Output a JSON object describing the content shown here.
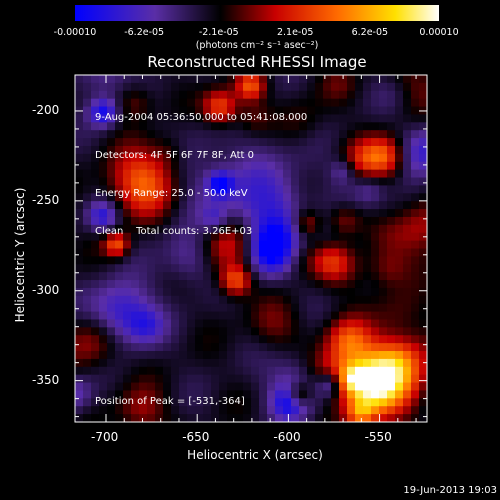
{
  "chart_data": {
    "type": "heatmap",
    "title": "Reconstructed RHESSI Image",
    "xlabel": "Heliocentric X (arcsec)",
    "ylabel": "Heliocentric Y (arcsec)",
    "xlim": [
      -717,
      -524
    ],
    "ylim": [
      -373,
      -180
    ],
    "x_ticks": [
      "-700",
      "-650",
      "-600",
      "-550"
    ],
    "x_tick_values": [
      -700,
      -650,
      -600,
      -550
    ],
    "y_ticks": [
      "-200",
      "-250",
      "-300",
      "-350"
    ],
    "y_tick_values": [
      -200,
      -250,
      -300,
      -350
    ],
    "colorbar": {
      "ticks": [
        "-0.00010",
        "-6.2e-05",
        "-2.1e-05",
        "2.1e-05",
        "6.2e-05",
        "0.00010"
      ],
      "tick_values": [
        -0.0001,
        -6.2e-05,
        -2.1e-05,
        2.1e-05,
        6.2e-05,
        0.0001
      ],
      "range": [
        -0.0001,
        0.0001
      ],
      "unit_label": "(photons cm⁻² s⁻¹ asec⁻²)"
    },
    "annotations": [
      "9-Aug-2004 05:36:50.000 to 05:41:08.000",
      "Detectors: 4F 5F 6F 7F 8F, Att 0",
      "Energy Range: 25.0 - 50.0 keV",
      "Clean    Total counts: 3.26E+03"
    ],
    "peak_label": "Position of Peak = [-531,-364]",
    "peak_position": [
      -531,
      -364
    ],
    "grid": false,
    "colormap": [
      "#0000ff",
      "#5a2ea6",
      "#000000",
      "#c80000",
      "#ff6a00",
      "#ffe000",
      "#ffffff"
    ]
  },
  "footer": {
    "timestamp": "19-Jun-2013 19:03"
  }
}
